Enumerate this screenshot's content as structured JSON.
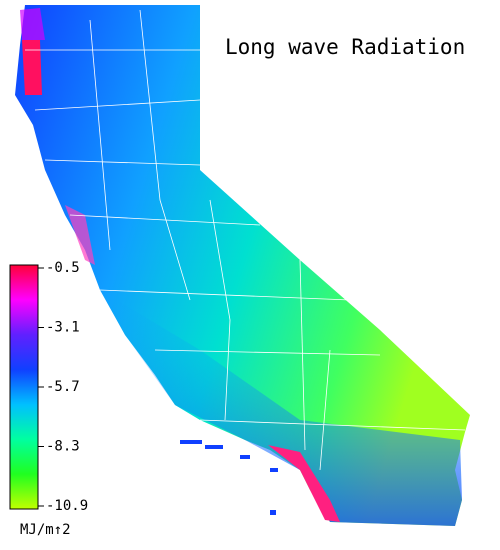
{
  "title": "Long wave Radiation",
  "colorbar": {
    "ticks": [
      -0.5,
      -3.1,
      -5.7,
      -8.3,
      -10.9
    ],
    "colors": [
      "#ff0038",
      "#ff00ff",
      "#6020ff",
      "#1040ff",
      "#00c0ff",
      "#00ffa0",
      "#20ff20",
      "#c0ff00"
    ],
    "unit": "MJ/m↑2"
  }
}
